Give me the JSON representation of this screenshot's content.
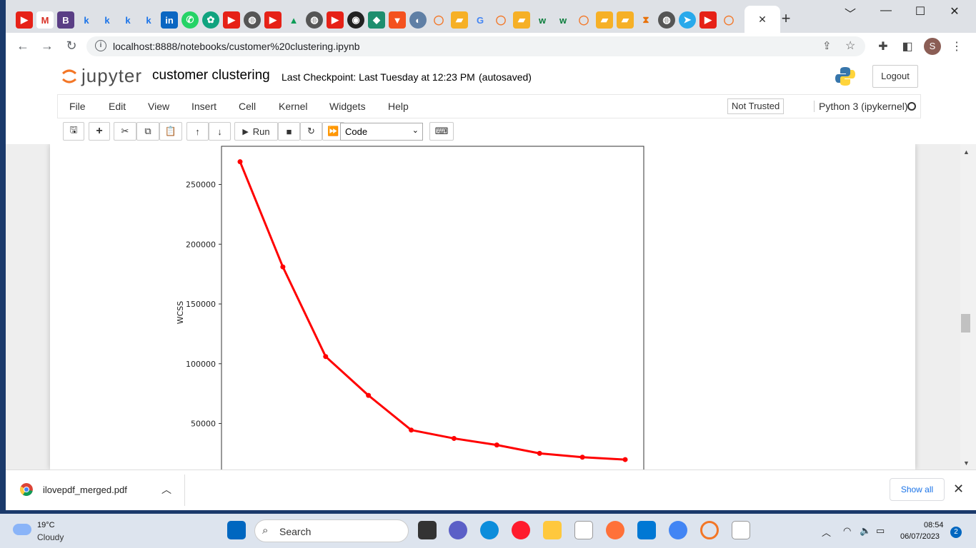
{
  "browser": {
    "url": "localhost:8888/notebooks/customer%20clustering.ipynb",
    "tab_close": "✕",
    "new_tab": "+",
    "window_controls": [
      "﹀",
      "—",
      "☐",
      "✕"
    ]
  },
  "jupyter": {
    "logo_text": "jupyter",
    "notebook_title": "customer clustering",
    "checkpoint": "Last Checkpoint: Last Tuesday at 12:23 PM",
    "autosave": "(autosaved)",
    "logout": "Logout",
    "menus": [
      "File",
      "Edit",
      "View",
      "Insert",
      "Cell",
      "Kernel",
      "Widgets",
      "Help"
    ],
    "trust": "Not Trusted",
    "kernel": "Python 3 (ipykernel)",
    "run_label": "Run",
    "cell_type": "Code"
  },
  "chart_data": {
    "type": "line",
    "x": [
      1,
      2,
      3,
      4,
      5,
      6,
      7,
      8,
      9,
      10
    ],
    "values": [
      269000,
      181000,
      106000,
      73500,
      44500,
      37500,
      32000,
      25000,
      21800,
      19800
    ],
    "ylabel": "WCSS",
    "yticks": [
      50000,
      100000,
      150000,
      200000,
      250000
    ],
    "ytick_labels": [
      "50000",
      "100000",
      "150000",
      "200000",
      "250000"
    ],
    "color": "#ff0000",
    "marker": "o",
    "grid": false
  },
  "downloads": {
    "file": "ilovepdf_merged.pdf",
    "show_all": "Show all"
  },
  "taskbar": {
    "temp": "19°C",
    "condition": "Cloudy",
    "search": "Search",
    "time": "08:54",
    "date": "06/07/2023",
    "notifications": "2"
  }
}
